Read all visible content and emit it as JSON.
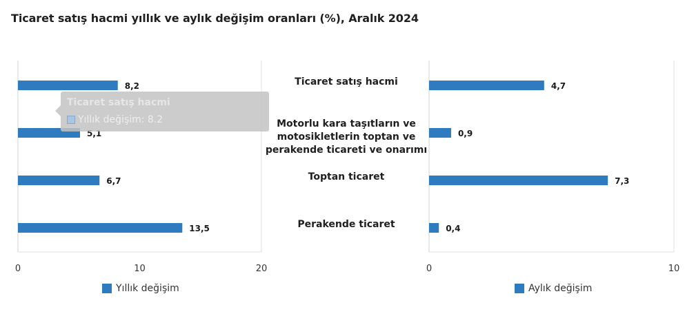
{
  "title": "Ticaret satış hacmi yıllık ve aylık değişim oranları (%), Aralık 2024",
  "chart_data": {
    "type": "bar",
    "orientation": "horizontal",
    "categories": [
      [
        "Ticaret satış hacmi"
      ],
      [
        "Motorlu kara taşıtların ve",
        "motosikletlerin toptan ve",
        "perakende ticareti ve onarımı"
      ],
      [
        "Toptan ticaret"
      ],
      [
        "Perakende ticaret"
      ]
    ],
    "panels": [
      {
        "series_name": "Yıllık değişim",
        "values": [
          8.2,
          5.1,
          6.7,
          13.5
        ],
        "value_labels": [
          "8,2",
          "5,1",
          "6,7",
          "13,5"
        ],
        "xlim": [
          0,
          20
        ],
        "ticks": [
          0,
          10,
          20
        ],
        "color": "#2e7bbf"
      },
      {
        "series_name": "Aylık değişim",
        "values": [
          4.7,
          0.9,
          7.3,
          0.4
        ],
        "value_labels": [
          "4,7",
          "0,9",
          "7,3",
          "0,4"
        ],
        "xlim": [
          0,
          10
        ],
        "ticks": [
          0,
          10
        ],
        "color": "#2e7bbf"
      }
    ],
    "grid": false,
    "legend": "bottom"
  },
  "tooltip": {
    "title": "Ticaret satış hacmi",
    "row": "Yıllık değişim: 8.2"
  }
}
